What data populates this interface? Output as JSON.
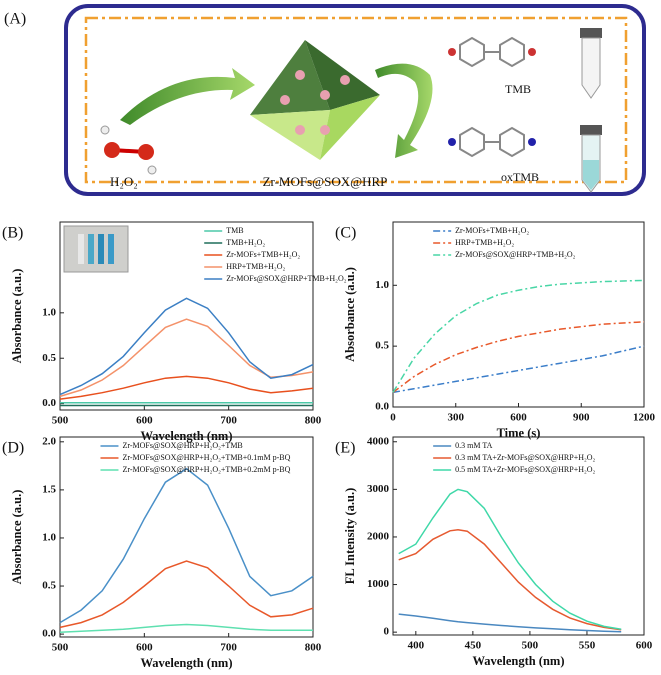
{
  "panel_a": {
    "label": "(A)",
    "h2o2": "H₂O₂",
    "material": "Zr-MOFs@SOX@HRP",
    "tmb": "TMB",
    "oxtmb": "oxTMB"
  },
  "chart_data": [
    {
      "type": "line",
      "label": "(B)",
      "xlabel": "Wavelength (nm)",
      "ylabel": "Absorbance (a.u.)",
      "legend": "upper right",
      "x": [
        500,
        525,
        550,
        575,
        600,
        625,
        650,
        675,
        700,
        725,
        750,
        775,
        800
      ],
      "xlim": [
        500,
        800
      ],
      "ylim": [
        -0.07,
        2.0
      ],
      "xticks": [
        500,
        600,
        700,
        800
      ],
      "yticks": [
        {
          "value": 0,
          "label": "0.0"
        },
        0.5,
        {
          "value": 1,
          "label": "1.0"
        }
      ],
      "series": [
        {
          "name": "TMB",
          "color": "#4cc9a8",
          "dash": "solid",
          "values": [
            0.01,
            0.01,
            0.01,
            0.01,
            0.01,
            0.01,
            0.01,
            0.01,
            0.01,
            0.01,
            0.01,
            0.01,
            0.01
          ]
        },
        {
          "name": "TMB+H₂O₂",
          "color": "#1f6f5a",
          "dash": "solid",
          "values": [
            -0.02,
            -0.02,
            -0.02,
            -0.02,
            -0.02,
            -0.02,
            -0.02,
            -0.02,
            -0.02,
            -0.02,
            -0.02,
            -0.02,
            -0.02
          ]
        },
        {
          "name": "Zr-MOFs+TMB+H₂O₂",
          "color": "#e8501e",
          "dash": "solid",
          "values": [
            0.05,
            0.08,
            0.12,
            0.17,
            0.23,
            0.28,
            0.3,
            0.28,
            0.23,
            0.16,
            0.12,
            0.14,
            0.17
          ]
        },
        {
          "name": "HRP+TMB+H₂O₂",
          "color": "#f4926a",
          "dash": "solid",
          "values": [
            0.08,
            0.15,
            0.26,
            0.42,
            0.63,
            0.84,
            0.93,
            0.85,
            0.64,
            0.42,
            0.29,
            0.31,
            0.35
          ]
        },
        {
          "name": "Zr-MOFs@SOX@HRP+TMB+H₂O₂",
          "color": "#3b7fc4",
          "dash": "solid",
          "values": [
            0.1,
            0.2,
            0.33,
            0.52,
            0.78,
            1.03,
            1.16,
            1.05,
            0.78,
            0.46,
            0.28,
            0.32,
            0.43
          ]
        }
      ]
    },
    {
      "type": "line",
      "label": "(C)",
      "xlabel": "Time (s)",
      "ylabel": "Absorbance (a.u.)",
      "legend": "upper left",
      "x": [
        0,
        100,
        200,
        300,
        400,
        500,
        600,
        700,
        800,
        900,
        1000,
        1100,
        1200
      ],
      "xlim": [
        0,
        1200
      ],
      "ylim": [
        0,
        1.52
      ],
      "xticks": [
        0,
        300,
        600,
        900,
        1200
      ],
      "yticks": [
        {
          "value": 0,
          "label": "0.0"
        },
        0.5,
        {
          "value": 1,
          "label": "1.0"
        }
      ],
      "series": [
        {
          "name": "Zr-MOFs+TMB+H₂O₂",
          "color": "#3a7dc9",
          "dash": "dashdot",
          "values": [
            0.12,
            0.15,
            0.18,
            0.21,
            0.24,
            0.27,
            0.3,
            0.33,
            0.36,
            0.39,
            0.42,
            0.46,
            0.5
          ]
        },
        {
          "name": "HRP+TMB+H₂O₂",
          "color": "#e8582a",
          "dash": "dashdot",
          "values": [
            0.12,
            0.25,
            0.35,
            0.43,
            0.49,
            0.54,
            0.58,
            0.61,
            0.64,
            0.66,
            0.68,
            0.69,
            0.7
          ]
        },
        {
          "name": "Zr-MOFs@SOX@HRP+TMB+H₂O₂",
          "color": "#49d6a6",
          "dash": "dashdot",
          "values": [
            0.12,
            0.4,
            0.6,
            0.75,
            0.85,
            0.92,
            0.96,
            0.99,
            1.01,
            1.02,
            1.03,
            1.035,
            1.04
          ]
        }
      ]
    },
    {
      "type": "line",
      "label": "(D)",
      "xlabel": "Wavelength (nm)",
      "ylabel": "Absorbance (a.u.)",
      "legend": "upper left",
      "x": [
        500,
        525,
        550,
        575,
        600,
        625,
        650,
        675,
        700,
        725,
        750,
        775,
        800
      ],
      "xlim": [
        500,
        800
      ],
      "ylim": [
        -0.03,
        2.05
      ],
      "xticks": [
        500,
        600,
        700,
        800
      ],
      "yticks": [
        {
          "value": 0,
          "label": "0.0"
        },
        0.5,
        {
          "value": 1,
          "label": "1.0"
        },
        1.5,
        {
          "value": 2,
          "label": "2.0"
        }
      ],
      "series": [
        {
          "name": "Zr-MOFs@SOX@HRP+H₂O₂+TMB",
          "color": "#4a90c8",
          "dash": "solid",
          "values": [
            0.12,
            0.25,
            0.45,
            0.78,
            1.2,
            1.58,
            1.72,
            1.55,
            1.1,
            0.6,
            0.4,
            0.45,
            0.6
          ]
        },
        {
          "name": "Zr-MOFs@SOX@HRP+H₂O₂+TMB+0.1mM p-BQ",
          "color": "#e8582a",
          "dash": "solid",
          "values": [
            0.07,
            0.12,
            0.2,
            0.33,
            0.5,
            0.68,
            0.76,
            0.69,
            0.5,
            0.3,
            0.18,
            0.2,
            0.27
          ]
        },
        {
          "name": "Zr-MOFs@SOX@HRP+H₂O₂+TMB+0.2mM p-BQ",
          "color": "#5fe0b0",
          "dash": "solid",
          "values": [
            0.02,
            0.03,
            0.04,
            0.05,
            0.07,
            0.09,
            0.1,
            0.09,
            0.07,
            0.05,
            0.04,
            0.04,
            0.04
          ]
        }
      ]
    },
    {
      "type": "line",
      "label": "(E)",
      "xlabel": "Wavelength (nm)",
      "ylabel": "FL Intensity (a.u.)",
      "legend": "upper left",
      "x": [
        385,
        400,
        415,
        430,
        437,
        445,
        460,
        475,
        490,
        505,
        520,
        535,
        550,
        565,
        580
      ],
      "xlim": [
        380,
        600
      ],
      "ylim": [
        -60,
        4100
      ],
      "xticks": [
        400,
        450,
        500,
        550,
        600
      ],
      "yticks": [
        0,
        1000,
        2000,
        3000,
        4000
      ],
      "series": [
        {
          "name": "0.3 mM TA",
          "color": "#4a88c0",
          "dash": "solid",
          "values": [
            380,
            340,
            290,
            240,
            220,
            200,
            170,
            140,
            115,
            90,
            70,
            50,
            35,
            20,
            10
          ]
        },
        {
          "name": "0.3 mM TA+Zr-MOFs@SOX@HRP+H₂O₂",
          "color": "#e65a30",
          "dash": "solid",
          "values": [
            1520,
            1650,
            1950,
            2130,
            2150,
            2120,
            1850,
            1450,
            1050,
            730,
            480,
            300,
            180,
            100,
            50
          ]
        },
        {
          "name": "0.5 mM TA+Zr-MOFs@SOX@HRP+H₂O₂",
          "color": "#3fd8a8",
          "dash": "solid",
          "values": [
            1650,
            1850,
            2400,
            2900,
            3000,
            2950,
            2600,
            2000,
            1450,
            1000,
            650,
            400,
            230,
            120,
            60
          ]
        }
      ]
    }
  ]
}
